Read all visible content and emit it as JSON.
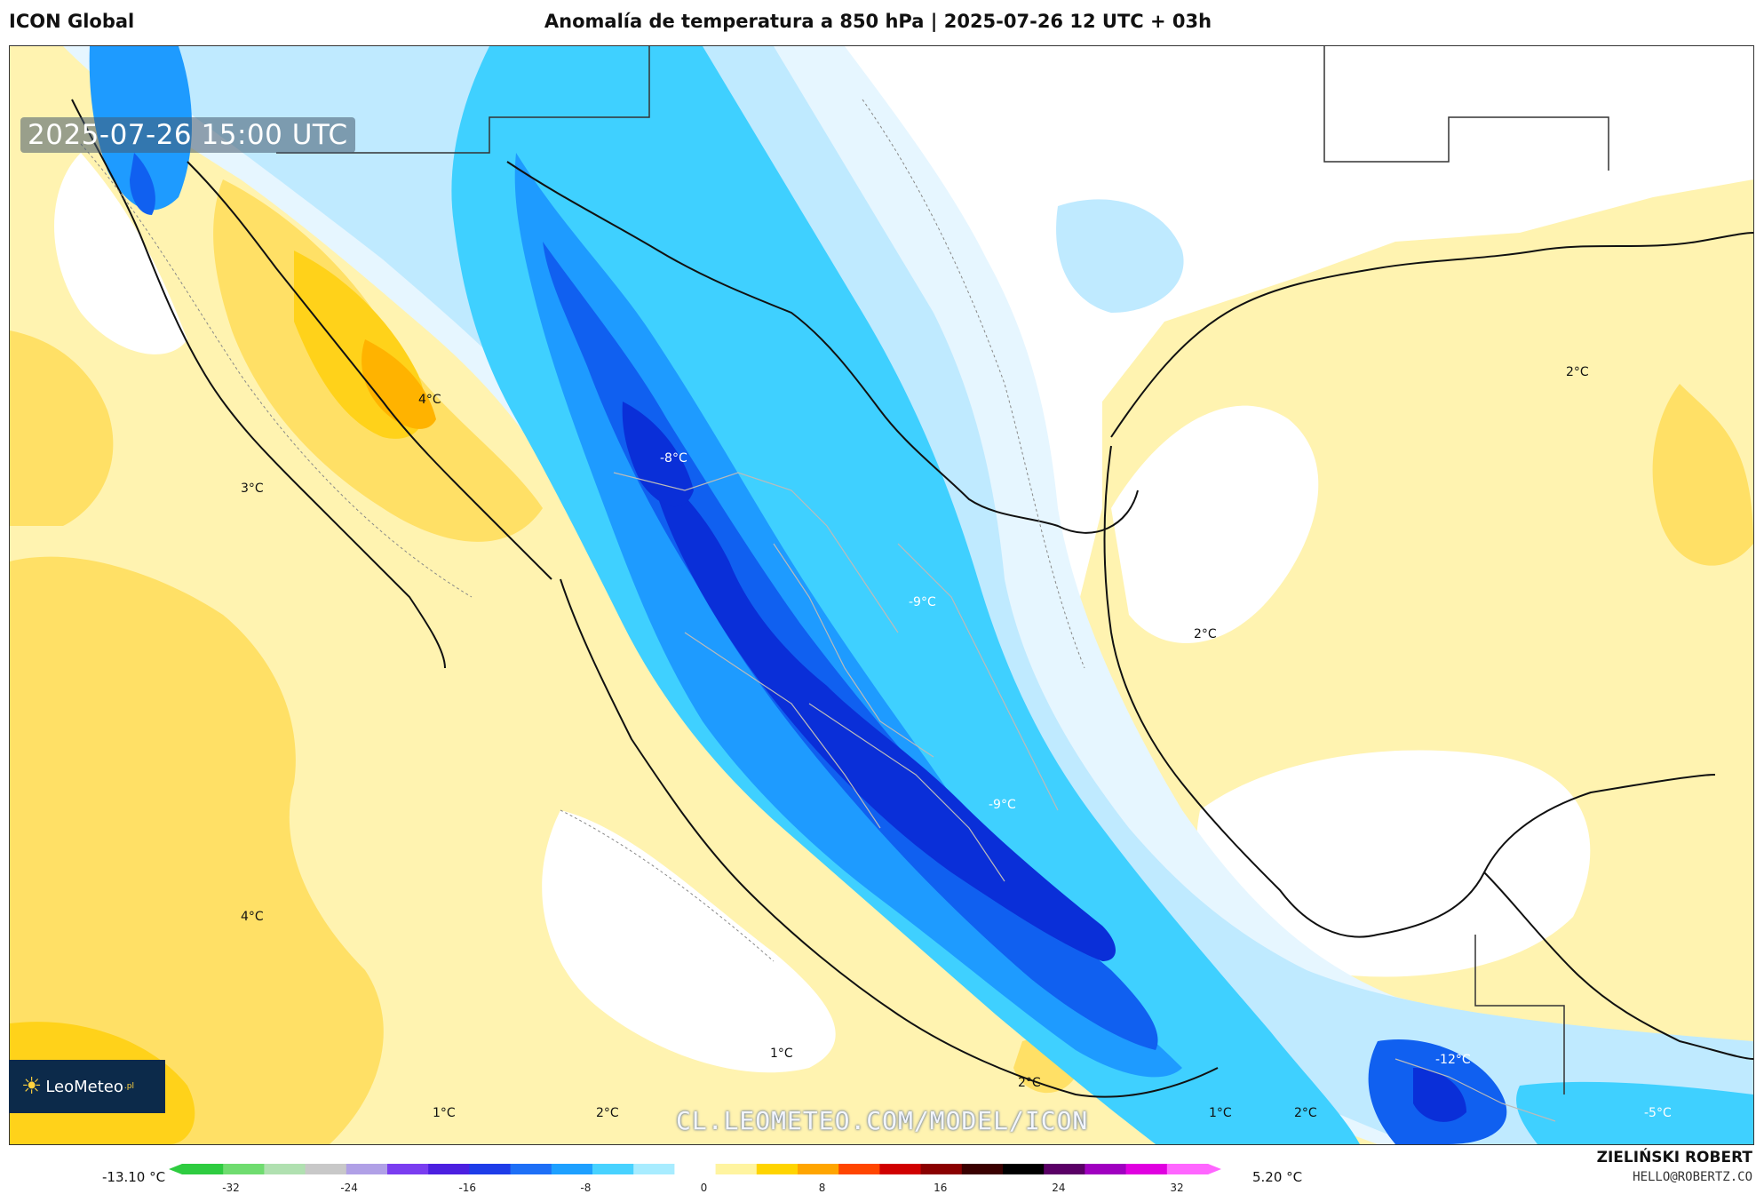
{
  "header": {
    "model": "ICON Global",
    "title": "Anomalía de temperatura a 850 hPa | 2025-07-26 12 UTC + 03h"
  },
  "map": {
    "timestamp": "2025-07-26 15:00 UTC",
    "watermark": "CL.LEOMETEO.COM/MODEL/ICON",
    "labels": [
      {
        "text": "4°C",
        "tone": "dark"
      },
      {
        "text": "3°C",
        "tone": "dark"
      },
      {
        "text": "-8°C",
        "tone": "light"
      },
      {
        "text": "-9°C",
        "tone": "light"
      },
      {
        "text": "-9°C",
        "tone": "light"
      },
      {
        "text": "2°C",
        "tone": "dark"
      },
      {
        "text": "2°C",
        "tone": "dark"
      },
      {
        "text": "4°C",
        "tone": "dark"
      },
      {
        "text": "1°C",
        "tone": "dark"
      },
      {
        "text": "2°C",
        "tone": "dark"
      },
      {
        "text": "1°C",
        "tone": "dark"
      },
      {
        "text": "2°C",
        "tone": "dark"
      },
      {
        "text": "1°C",
        "tone": "dark"
      },
      {
        "text": "2°C",
        "tone": "dark"
      },
      {
        "text": "-12°C",
        "tone": "light"
      },
      {
        "text": "-5°C",
        "tone": "light"
      }
    ],
    "colors": {
      "warm_pale": "#fff3b0",
      "warm": "#ffe066",
      "warm_strong": "#ffd21a",
      "warm_orange": "#ffb300",
      "cold_pale": "#e6f6ff",
      "cold_light": "#bfeaff",
      "cold_cyan": "#3fd0ff",
      "cold_mid": "#1e9bff",
      "cold_blue": "#1060f0",
      "cold_deep": "#0a2fd8"
    }
  },
  "logo": {
    "sun_icon": "sun-icon",
    "text": "LeoMeteo",
    "suffix": ".pl"
  },
  "colorbar": {
    "min_label": "-13.10 °C",
    "max_label": "5.20 °C",
    "ticks": [
      "-32",
      "-24",
      "-16",
      "-8",
      "0",
      "8",
      "16",
      "24",
      "32"
    ],
    "stops": [
      "#2ecc40",
      "#6fdc6f",
      "#b0e0b0",
      "#c8c8c8",
      "#b0a0e6",
      "#7a3df0",
      "#4b1fe0",
      "#1e3ce8",
      "#1e6ff6",
      "#1ea0ff",
      "#48d2ff",
      "#a8ecff",
      "#ffffff",
      "#fff4a0",
      "#ffd400",
      "#ffa500",
      "#ff4500",
      "#d00000",
      "#8a0000",
      "#3a0000",
      "#000000",
      "#5a0066",
      "#a000c0",
      "#e000e0",
      "#ff66ff"
    ]
  },
  "credit": {
    "author": "ZIELIŃSKI ROBERT",
    "email": "HELLO@ROBERTZ.CO"
  }
}
